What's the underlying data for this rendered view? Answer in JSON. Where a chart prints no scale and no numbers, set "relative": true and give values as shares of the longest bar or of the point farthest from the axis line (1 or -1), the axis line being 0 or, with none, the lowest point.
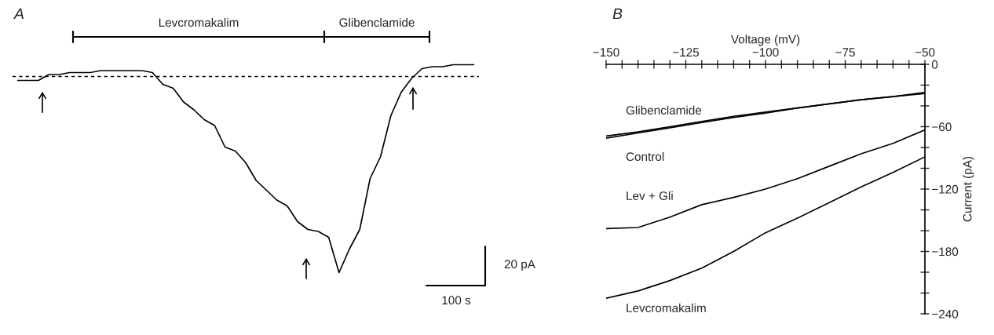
{
  "chart_data": [
    {
      "type": "line",
      "title": "A",
      "relative": true,
      "categories": [
        null,
        null,
        null,
        null,
        null,
        null,
        null,
        null,
        null,
        null,
        null,
        null,
        null,
        null,
        null,
        null,
        null,
        null,
        null,
        null,
        null,
        null,
        null,
        null,
        null,
        null,
        null,
        null,
        null,
        null,
        null,
        null,
        null,
        null,
        null,
        null,
        null,
        null,
        null,
        null,
        null,
        null,
        null,
        null,
        null
      ],
      "series": [
        {
          "color": "#000000",
          "values": [
            -0.02,
            -0.02,
            -0.02,
            0.01,
            0.01,
            0.02,
            0.02,
            0.02,
            0.03,
            0.03,
            0.03,
            0.03,
            0.03,
            0.02,
            -0.04,
            -0.06,
            -0.13,
            -0.17,
            -0.22,
            -0.25,
            -0.36,
            -0.38,
            -0.44,
            -0.53,
            -0.58,
            -0.63,
            -0.66,
            -0.74,
            -0.78,
            -0.79,
            -0.82,
            -1.0,
            -0.88,
            -0.78,
            -0.52,
            -0.41,
            -0.2,
            -0.08,
            -0.01,
            0.04,
            0.05,
            0.05,
            0.06,
            0.06,
            0.06
          ]
        }
      ],
      "ref_lines": [
        {
          "axis": "y",
          "value": 0,
          "line_style": "dashed",
          "color": "#000000"
        }
      ],
      "annotations": [
        "Levcromakalim",
        "Glibenclamide",
        "20 pA",
        "100 s"
      ],
      "legend": false
    },
    {
      "type": "line",
      "title": "B",
      "xlabel": "Voltage (mV)",
      "ylabel": "Current (pA)",
      "x": [
        -150,
        -140,
        -130,
        -120,
        -110,
        -100,
        -90,
        -80,
        -70,
        -60,
        -50
      ],
      "xlim": [
        -150,
        -50
      ],
      "ylim": [
        -240,
        0
      ],
      "xticks": [
        {
          "value": -150,
          "label": "−150"
        },
        {
          "value": -145,
          "label": null
        },
        {
          "value": -140,
          "label": null
        },
        {
          "value": -135,
          "label": null
        },
        {
          "value": -130,
          "label": null
        },
        {
          "value": -125,
          "label": "−125"
        },
        {
          "value": -120,
          "label": null
        },
        {
          "value": -115,
          "label": null
        },
        {
          "value": -110,
          "label": null
        },
        {
          "value": -105,
          "label": null
        },
        {
          "value": -100,
          "label": "−100"
        },
        {
          "value": -95,
          "label": null
        },
        {
          "value": -90,
          "label": null
        },
        {
          "value": -85,
          "label": null
        },
        {
          "value": -80,
          "label": null
        },
        {
          "value": -75,
          "label": "−75"
        },
        {
          "value": -70,
          "label": null
        },
        {
          "value": -65,
          "label": null
        },
        {
          "value": -60,
          "label": null
        },
        {
          "value": -55,
          "label": null
        },
        {
          "value": -50,
          "label": "−50"
        }
      ],
      "yticks": [
        0,
        {
          "value": -20,
          "label": null
        },
        {
          "value": -40,
          "label": null
        },
        {
          "value": -60,
          "label": "−60"
        },
        {
          "value": -80,
          "label": null
        },
        {
          "value": -100,
          "label": null
        },
        {
          "value": -120,
          "label": "−120"
        },
        {
          "value": -140,
          "label": null
        },
        {
          "value": -160,
          "label": null
        },
        {
          "value": -180,
          "label": "−180"
        },
        {
          "value": -200,
          "label": null
        },
        {
          "value": -220,
          "label": null
        },
        {
          "value": -240,
          "label": "−240"
        }
      ],
      "series": [
        {
          "name": "Glibenclamide",
          "color": "#000000",
          "values": [
            -69,
            -65,
            -60,
            -55,
            -50,
            -46,
            -42,
            -38,
            -34,
            -31,
            -27
          ]
        },
        {
          "name": "Control",
          "color": "#000000",
          "values": [
            -71,
            -66,
            -61,
            -56,
            -51,
            -47,
            -42,
            -38,
            -34,
            -31,
            -28
          ]
        },
        {
          "name": "Lev + Gli",
          "color": "#000000",
          "values": [
            -158,
            -157,
            -147,
            -135,
            -128,
            -120,
            -110,
            -98,
            -86,
            -76,
            -63
          ]
        },
        {
          "name": "Levcromakalim",
          "color": "#000000",
          "values": [
            -225,
            -218,
            -208,
            -196,
            -180,
            -162,
            -148,
            -133,
            -118,
            -104,
            -89
          ]
        }
      ],
      "legend": false,
      "grid": false,
      "marker": "none"
    }
  ]
}
